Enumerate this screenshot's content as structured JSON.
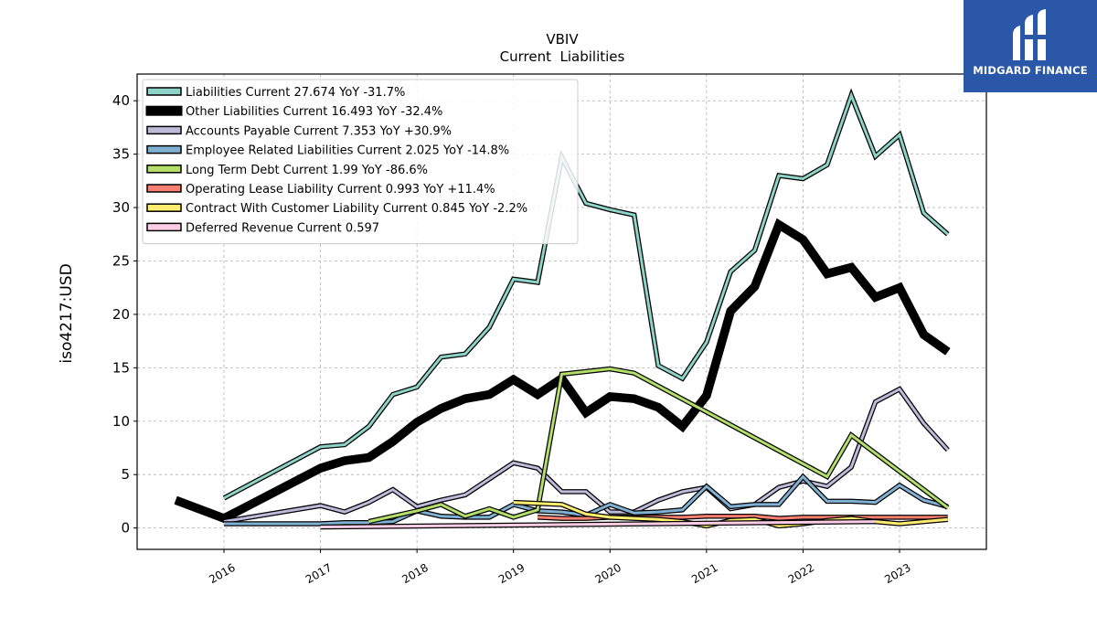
{
  "logo": {
    "text": "MIDGARD FINANCE"
  },
  "chart_data": {
    "type": "line",
    "title": "VBIV",
    "subtitle": "Current  Liabilities",
    "ylabel": "iso4217:USD",
    "xlabel": "",
    "ylim": [
      -2,
      42.5
    ],
    "xlim": [
      2015.1,
      2023.9
    ],
    "yticks": [
      0,
      5,
      10,
      15,
      20,
      25,
      30,
      35,
      40
    ],
    "xticks": [
      2016,
      2017,
      2018,
      2019,
      2020,
      2021,
      2022,
      2023
    ],
    "xtick_labels": [
      "2016",
      "2017",
      "2018",
      "2019",
      "2020",
      "2021",
      "2022",
      "2023"
    ],
    "grid": true,
    "legend_position": "top-left",
    "series": [
      {
        "name": "Liabilities Current  27.674 YoY -31.7%",
        "color": "#8dd3c7",
        "width": 3,
        "draw_order": 1,
        "x": [
          2016.0,
          2017.0,
          2017.25,
          2017.5,
          2017.75,
          2018.0,
          2018.25,
          2018.5,
          2018.75,
          2019.0,
          2019.25,
          2019.5,
          2019.75,
          2020.0,
          2020.25,
          2020.5,
          2020.75,
          2021.0,
          2021.25,
          2021.5,
          2021.75,
          2022.0,
          2022.25,
          2022.5,
          2022.75,
          2023.0,
          2023.25,
          2023.5
        ],
        "y": [
          2.8,
          7.6,
          7.8,
          9.5,
          12.5,
          13.2,
          16.0,
          16.3,
          18.8,
          23.3,
          23.0,
          34.7,
          30.4,
          29.8,
          29.3,
          15.2,
          14.0,
          17.4,
          24.0,
          26.0,
          33.0,
          32.7,
          34.0,
          40.5,
          34.8,
          36.8,
          29.5,
          27.5
        ]
      },
      {
        "name": "Other Liabilities Current  16.493 YoY -32.4%",
        "color": "#000000",
        "width": 7,
        "draw_order": 2,
        "x": [
          2015.5,
          2016.0,
          2017.0,
          2017.25,
          2017.5,
          2017.75,
          2018.0,
          2018.25,
          2018.5,
          2018.75,
          2019.0,
          2019.25,
          2019.5,
          2019.75,
          2020.0,
          2020.25,
          2020.5,
          2020.75,
          2021.0,
          2021.25,
          2021.5,
          2021.75,
          2022.0,
          2022.25,
          2022.5,
          2022.75,
          2023.0,
          2023.25,
          2023.5
        ],
        "y": [
          2.6,
          0.9,
          5.6,
          6.3,
          6.6,
          8.1,
          9.9,
          11.2,
          12.1,
          12.5,
          13.9,
          12.5,
          14.0,
          10.8,
          12.3,
          12.1,
          11.3,
          9.5,
          12.4,
          20.3,
          22.6,
          28.4,
          27.0,
          23.8,
          24.4,
          21.6,
          22.5,
          18.1,
          16.5
        ]
      },
      {
        "name": "Accounts Payable Current  7.353 YoY +30.9%",
        "color": "#bebada",
        "width": 3,
        "draw_order": 3,
        "x": [
          2016.0,
          2017.0,
          2017.25,
          2017.5,
          2017.75,
          2018.0,
          2018.25,
          2018.5,
          2018.75,
          2019.0,
          2019.25,
          2019.5,
          2019.75,
          2020.0,
          2020.25,
          2020.5,
          2020.75,
          2021.0,
          2021.25,
          2021.5,
          2021.75,
          2022.0,
          2022.25,
          2022.5,
          2022.75,
          2023.0,
          2023.25,
          2023.5
        ],
        "y": [
          0.6,
          2.1,
          1.5,
          2.4,
          3.6,
          2.0,
          2.6,
          3.1,
          4.6,
          6.1,
          5.6,
          3.4,
          3.4,
          1.5,
          1.5,
          2.6,
          3.4,
          3.8,
          1.8,
          2.2,
          3.8,
          4.4,
          3.9,
          5.7,
          11.8,
          13.0,
          9.8,
          7.3
        ]
      },
      {
        "name": "Employee Related Liabilities Current  2.025 YoY -14.8%",
        "color": "#80b1d3",
        "width": 3,
        "draw_order": 4,
        "x": [
          2016.0,
          2017.0,
          2017.25,
          2017.5,
          2017.75,
          2018.0,
          2018.25,
          2018.5,
          2018.75,
          2019.0,
          2019.25,
          2019.5,
          2019.75,
          2020.0,
          2020.25,
          2020.5,
          2020.75,
          2021.0,
          2021.25,
          2021.5,
          2021.75,
          2022.0,
          2022.25,
          2022.5,
          2022.75,
          2023.0,
          2023.25,
          2023.5
        ],
        "y": [
          0.4,
          0.4,
          0.5,
          0.5,
          0.6,
          1.6,
          1.1,
          1.0,
          1.0,
          2.2,
          1.6,
          1.5,
          1.2,
          2.2,
          1.4,
          1.5,
          1.7,
          3.9,
          2.0,
          2.2,
          2.2,
          4.8,
          2.5,
          2.5,
          2.4,
          4.0,
          2.6,
          2.0
        ]
      },
      {
        "name": "Long Term Debt Current  1.99 YoY -86.6%",
        "color": "#b3de69",
        "width": 3,
        "draw_order": 5,
        "x": [
          2017.5,
          2018.0,
          2018.25,
          2018.5,
          2018.75,
          2019.0,
          2019.25,
          2019.5,
          2020.0,
          2020.25,
          2022.25,
          2022.5,
          2023.5
        ],
        "y": [
          0.6,
          1.6,
          2.2,
          1.1,
          1.8,
          1.0,
          1.7,
          14.4,
          14.9,
          14.5,
          4.8,
          8.7,
          1.9
        ]
      },
      {
        "name": "Operating Lease Liability Current  0.993 YoY +11.4%",
        "color": "#fb8072",
        "width": 3,
        "draw_order": 6,
        "x": [
          2019.25,
          2019.5,
          2019.75,
          2020.0,
          2020.25,
          2020.5,
          2020.75,
          2021.0,
          2021.25,
          2021.5,
          2021.75,
          2022.0,
          2022.25,
          2022.5,
          2022.75,
          2023.0,
          2023.25,
          2023.5
        ],
        "y": [
          1.0,
          0.9,
          0.9,
          1.0,
          1.0,
          1.0,
          1.0,
          1.1,
          1.1,
          1.1,
          0.9,
          1.0,
          1.0,
          1.0,
          1.0,
          1.0,
          1.0,
          1.0
        ]
      },
      {
        "name": "Contract With Customer Liability Current  0.845 YoY -2.2%",
        "color": "#ffed6f",
        "width": 3,
        "draw_order": 7,
        "x": [
          2019.0,
          2019.5,
          2019.75,
          2020.0,
          2020.25,
          2020.5,
          2020.75,
          2021.0,
          2021.25,
          2021.5,
          2021.75,
          2022.0,
          2022.25,
          2022.5,
          2022.75,
          2023.0,
          2023.25,
          2023.5
        ],
        "y": [
          2.4,
          2.2,
          1.3,
          1.0,
          0.9,
          0.8,
          0.6,
          0.2,
          0.7,
          0.8,
          0.2,
          0.4,
          0.7,
          0.9,
          0.6,
          0.4,
          0.6,
          0.8
        ]
      },
      {
        "name": "Deferred Revenue Current  0.597",
        "color": "#fccde5",
        "width": 3,
        "draw_order": 8,
        "x": [
          2017.0,
          2022.75
        ],
        "y": [
          0.1,
          0.6
        ]
      }
    ]
  }
}
